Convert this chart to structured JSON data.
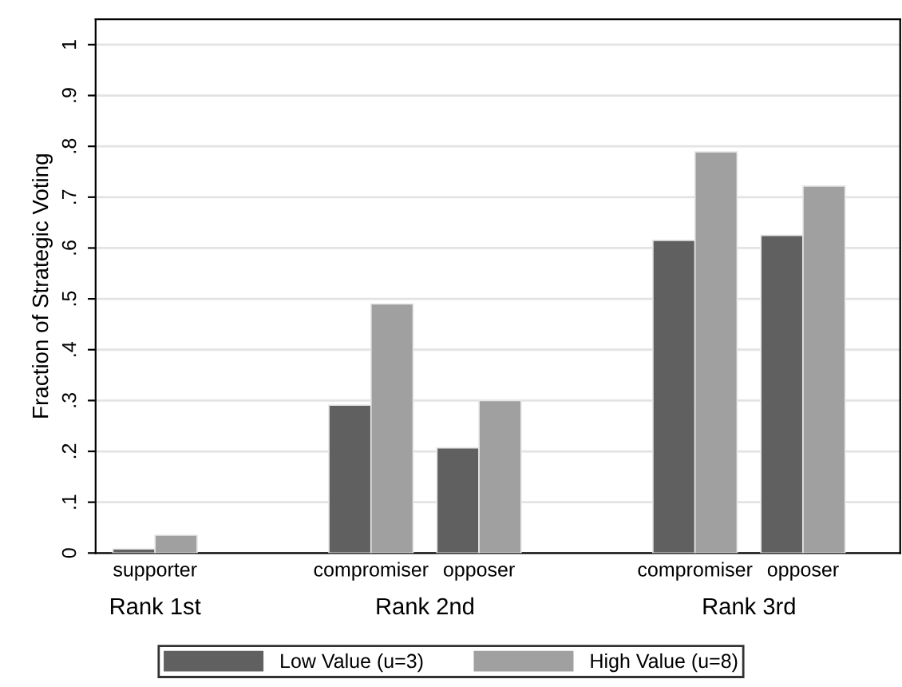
{
  "chart_data": {
    "type": "bar",
    "ylabel": "Fraction of Strategic Voting",
    "categories": [
      "supporter",
      null,
      "compromiser",
      "opposer",
      null,
      "compromiser",
      "opposer"
    ],
    "series": [
      {
        "name": "Low Value (u=3)",
        "color": "#606060",
        "values": [
          0.008,
          null,
          0.291,
          0.207,
          null,
          0.615,
          0.625
        ]
      },
      {
        "name": "High Value (u=8)",
        "color": "#a0a0a0",
        "values": [
          0.035,
          null,
          0.49,
          0.3,
          null,
          0.789,
          0.722
        ]
      }
    ],
    "annotations": [
      "Rank 1st",
      "Rank 2nd",
      "Rank 3rd"
    ],
    "ylim": [
      0,
      1.05
    ],
    "yticks": [
      {
        "value": 0,
        "label": "0"
      },
      {
        "value": 0.1,
        "label": ".1"
      },
      {
        "value": 0.2,
        "label": ".2"
      },
      {
        "value": 0.3,
        "label": ".3"
      },
      {
        "value": 0.4,
        "label": ".4"
      },
      {
        "value": 0.5,
        "label": ".5"
      },
      {
        "value": 0.6,
        "label": ".6"
      },
      {
        "value": 0.7,
        "label": ".7"
      },
      {
        "value": 0.8,
        "label": ".8"
      },
      {
        "value": 0.9,
        "label": ".9"
      },
      {
        "value": 1,
        "label": "1"
      }
    ],
    "grid": "y",
    "legend": "bottom"
  }
}
